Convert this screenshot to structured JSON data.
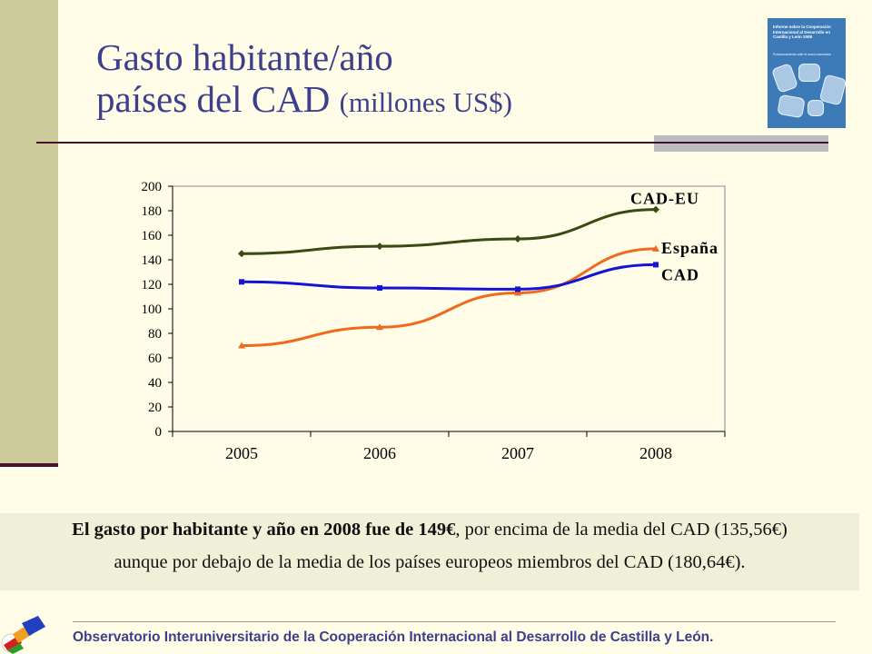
{
  "slide": {
    "title_line1": "Gasto habitante/año",
    "title_line2": "países del CAD",
    "title_units": "(millones US$)"
  },
  "cover": {
    "title": "Informe sobre la Cooperación Internacional al Desarrollo en Castilla y León 2008",
    "subtitle": "Posicionamiento ante el nuevo escenario"
  },
  "summary": {
    "bold_part": "El gasto por habitante y año en 2008 fue de 149€",
    "rest_line1": ", por encima de la media del CAD (135,56€)",
    "line2": "aunque por debajo de la media de los países europeos miembros del CAD (180,64€)."
  },
  "footer": {
    "text": "Observatorio Interuniversitario de la Cooperación Internacional al Desarrollo de Castilla y León."
  },
  "chart_data": {
    "type": "line",
    "x": [
      "2005",
      "2006",
      "2007",
      "2008"
    ],
    "ylim": [
      0,
      200
    ],
    "yticks": [
      0,
      20,
      40,
      60,
      80,
      100,
      120,
      140,
      160,
      180,
      200
    ],
    "grid": false,
    "series": [
      {
        "name": "CAD-EU",
        "values": [
          145,
          151,
          157,
          181
        ],
        "color": "#3a4a14",
        "marker": "diamond"
      },
      {
        "name": "España",
        "values": [
          70,
          85,
          113,
          149
        ],
        "color": "#ee6a1e",
        "marker": "triangle"
      },
      {
        "name": "CAD",
        "values": [
          122,
          117,
          116,
          136
        ],
        "color": "#1414d4",
        "marker": "square"
      }
    ]
  }
}
